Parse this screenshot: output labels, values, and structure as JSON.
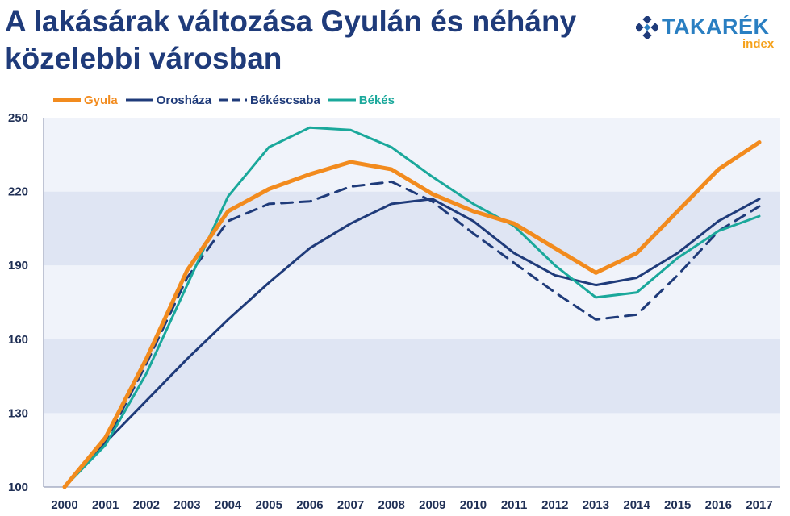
{
  "title": "A lakásárak változása Gyulán és néhány közelebbi városban",
  "logo": {
    "brand": "TAKARÉK",
    "sub": "index",
    "icon": "takarek-logo-icon",
    "brand_color": "#2a7fc2",
    "sub_color": "#f5a11a"
  },
  "chart_data": {
    "type": "line",
    "title": "A lakásárak változása Gyulán és néhány közelebbi városban",
    "xlabel": "",
    "ylabel": "",
    "x": [
      "2000",
      "2001",
      "2002",
      "2003",
      "2004",
      "2005",
      "2006",
      "2007",
      "2008",
      "2009",
      "2010",
      "2011",
      "2012",
      "2013",
      "2014",
      "2015",
      "2016",
      "2017"
    ],
    "ylim": [
      100,
      250
    ],
    "yticks": [
      100,
      130,
      160,
      190,
      220,
      250
    ],
    "grid": "alternating horizontal bands",
    "legend_position": "top-left",
    "series": [
      {
        "name": "Gyula",
        "color": "#f28b1e",
        "style": "solid",
        "values": [
          100,
          120,
          152,
          188,
          212,
          221,
          227,
          232,
          229,
          219,
          212,
          207,
          197,
          187,
          195,
          212,
          229,
          240
        ]
      },
      {
        "name": "Orosháza",
        "color": "#1f3b7a",
        "style": "solid",
        "values": [
          100,
          118,
          135,
          152,
          168,
          183,
          197,
          207,
          215,
          217,
          208,
          195,
          186,
          182,
          185,
          195,
          208,
          217
        ]
      },
      {
        "name": "Békéscsaba",
        "color": "#1f3b7a",
        "style": "dashed",
        "values": [
          100,
          118,
          150,
          185,
          208,
          215,
          216,
          222,
          224,
          216,
          203,
          191,
          179,
          168,
          170,
          186,
          204,
          214
        ]
      },
      {
        "name": "Békés",
        "color": "#1aa89b",
        "style": "solid",
        "values": [
          100,
          117,
          146,
          182,
          218,
          238,
          246,
          245,
          238,
          226,
          215,
          206,
          190,
          177,
          179,
          193,
          204,
          210
        ]
      }
    ]
  }
}
